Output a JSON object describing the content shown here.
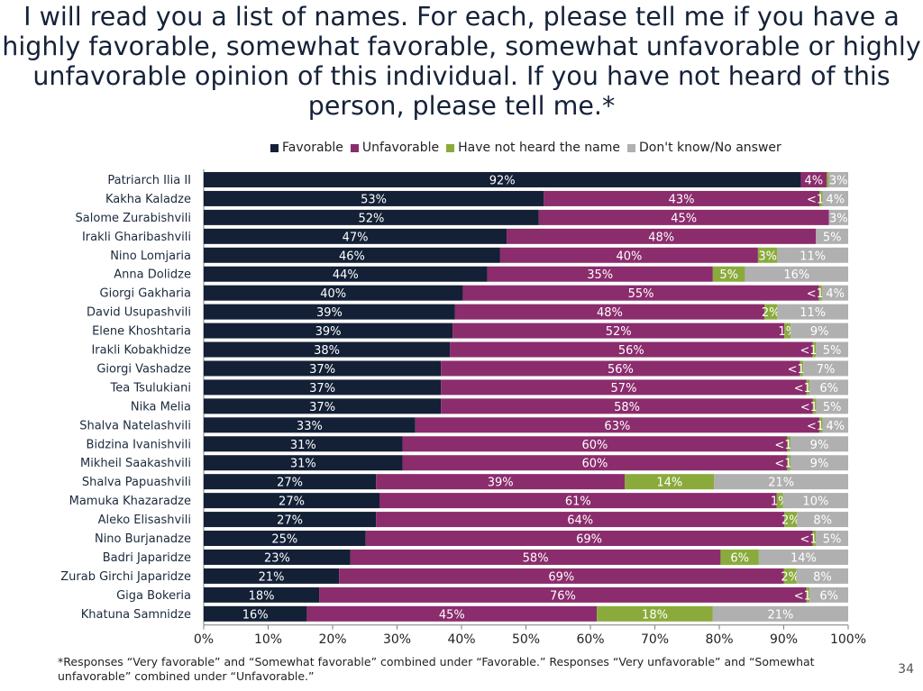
{
  "title": "I will read you a list of names. For each, please tell me if you have a highly favorable, somewhat favorable, somewhat unfavorable or highly unfavorable opinion of this individual. If you have not heard of this person, please tell me.*",
  "footnote": "*Responses “Very favorable” and “Somewhat favorable” combined under “Favorable.” Responses “Very unfavorable” and “Somewhat unfavorable” combined under “Unfavorable.”",
  "page_number": "34",
  "chart_data": {
    "type": "bar",
    "orientation": "horizontal",
    "stacked": true,
    "xlim": [
      0,
      100
    ],
    "x_ticks": [
      "0%",
      "10%",
      "20%",
      "30%",
      "40%",
      "50%",
      "60%",
      "70%",
      "80%",
      "90%",
      "100%"
    ],
    "legend_position": "top",
    "grid": false,
    "categories": [
      "Patriarch Ilia II",
      "Kakha Kaladze",
      "Salome Zurabishvili",
      "Irakli Gharibashvili",
      "Nino Lomjaria",
      "Anna Dolidze",
      "Giorgi Gakharia",
      "David Usupashvili",
      "Elene Khoshtaria",
      "Irakli Kobakhidze",
      "Giorgi Vashadze",
      "Tea Tsulukiani",
      "Nika Melia",
      "Shalva Natelashvili",
      "Bidzina Ivanishvili",
      "Mikheil Saakashvili",
      "Shalva Papuashvili",
      "Mamuka Khazaradze",
      "Aleko Elisashvili",
      "Nino Burjanadze",
      "Badri Japaridze",
      "Zurab Girchi Japaridze",
      "Giga Bokeria",
      "Khatuna Samnidze"
    ],
    "series": [
      {
        "name": "Favorable",
        "color": "#132036",
        "values": [
          92,
          53,
          52,
          47,
          46,
          44,
          40,
          39,
          39,
          38,
          37,
          37,
          37,
          33,
          31,
          31,
          27,
          27,
          27,
          25,
          23,
          21,
          18,
          16
        ],
        "labels": [
          "92%",
          "53%",
          "52%",
          "47%",
          "46%",
          "44%",
          "40%",
          "39%",
          "39%",
          "38%",
          "37%",
          "37%",
          "37%",
          "33%",
          "31%",
          "31%",
          "27%",
          "27%",
          "27%",
          "25%",
          "23%",
          "21%",
          "18%",
          "16%"
        ]
      },
      {
        "name": "Unfavorable",
        "color": "#8b2c6d",
        "values": [
          4,
          43,
          45,
          48,
          40,
          35,
          55,
          48,
          52,
          56,
          56,
          57,
          58,
          63,
          60,
          60,
          39,
          61,
          64,
          69,
          58,
          69,
          76,
          45
        ],
        "labels": [
          "4%",
          "43%",
          "45%",
          "48%",
          "40%",
          "35%",
          "55%",
          "48%",
          "52%",
          "56%",
          "56%",
          "57%",
          "58%",
          "63%",
          "60%",
          "60%",
          "39%",
          "61%",
          "64%",
          "69%",
          "58%",
          "69%",
          "76%",
          "45%"
        ]
      },
      {
        "name": "Have not heard the name",
        "color": "#8aab3c",
        "values": [
          0.3,
          0.5,
          0,
          0,
          3,
          5,
          0.5,
          2,
          1,
          0.5,
          0.5,
          0.5,
          0.5,
          0.5,
          0.5,
          0.5,
          14,
          1,
          2,
          0.5,
          6,
          2,
          0.5,
          18
        ],
        "labels": [
          "",
          "<1%",
          "",
          "",
          "3%",
          "5%",
          "<1%",
          "2%",
          "1%",
          "<1%",
          "<1%",
          "<1%",
          "<1%",
          "<1%",
          "<1%",
          "<1%",
          "14%",
          "1%",
          "2%",
          "<1%",
          "6%",
          "2%",
          "<1%",
          "18%"
        ]
      },
      {
        "name": "Don't know/No answer",
        "color": "#b0b0b0",
        "values": [
          3,
          4,
          3,
          5,
          11,
          16,
          4,
          11,
          9,
          5,
          7,
          6,
          5,
          4,
          9,
          9,
          21,
          10,
          8,
          5,
          14,
          8,
          6,
          21
        ],
        "labels": [
          "3%",
          "4%",
          "3%",
          "5%",
          "11%",
          "16%",
          "4%",
          "11%",
          "9%",
          "5%",
          "7%",
          "6%",
          "5%",
          "4%",
          "9%",
          "9%",
          "21%",
          "10%",
          "8%",
          "5%",
          "14%",
          "8%",
          "6%",
          "21%"
        ]
      }
    ]
  }
}
